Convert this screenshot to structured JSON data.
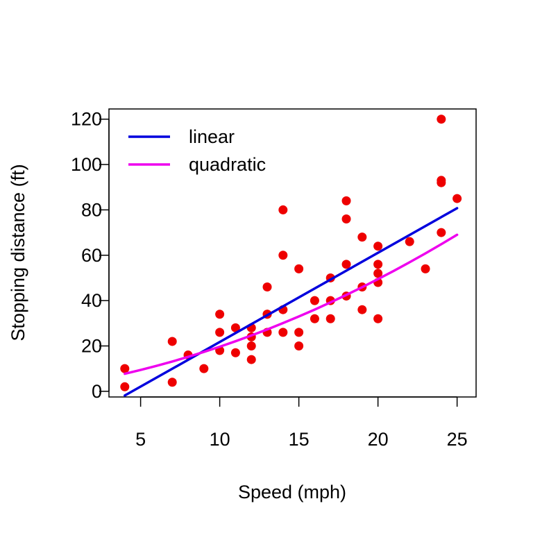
{
  "chart_data": {
    "type": "scatter",
    "title": "",
    "xlabel": "Speed (mph)",
    "ylabel": "Stopping distance (ft)",
    "xlim": [
      3,
      26.2
    ],
    "ylim": [
      -2.5,
      124.5
    ],
    "x_ticks": [
      5,
      10,
      15,
      20,
      25
    ],
    "y_ticks": [
      0,
      20,
      40,
      60,
      80,
      100,
      120
    ],
    "grid": false,
    "legend_position": "top-left",
    "point_color": "#ee0000",
    "points": [
      {
        "x": 4,
        "y": 2
      },
      {
        "x": 4,
        "y": 10
      },
      {
        "x": 7,
        "y": 4
      },
      {
        "x": 7,
        "y": 22
      },
      {
        "x": 8,
        "y": 16
      },
      {
        "x": 9,
        "y": 10
      },
      {
        "x": 10,
        "y": 18
      },
      {
        "x": 10,
        "y": 26
      },
      {
        "x": 10,
        "y": 34
      },
      {
        "x": 11,
        "y": 17
      },
      {
        "x": 11,
        "y": 28
      },
      {
        "x": 12,
        "y": 14
      },
      {
        "x": 12,
        "y": 20
      },
      {
        "x": 12,
        "y": 24
      },
      {
        "x": 12,
        "y": 28
      },
      {
        "x": 13,
        "y": 26
      },
      {
        "x": 13,
        "y": 34
      },
      {
        "x": 13,
        "y": 34
      },
      {
        "x": 13,
        "y": 46
      },
      {
        "x": 14,
        "y": 26
      },
      {
        "x": 14,
        "y": 36
      },
      {
        "x": 14,
        "y": 60
      },
      {
        "x": 14,
        "y": 80
      },
      {
        "x": 15,
        "y": 20
      },
      {
        "x": 15,
        "y": 26
      },
      {
        "x": 15,
        "y": 54
      },
      {
        "x": 16,
        "y": 32
      },
      {
        "x": 16,
        "y": 40
      },
      {
        "x": 17,
        "y": 32
      },
      {
        "x": 17,
        "y": 40
      },
      {
        "x": 17,
        "y": 50
      },
      {
        "x": 18,
        "y": 42
      },
      {
        "x": 18,
        "y": 56
      },
      {
        "x": 18,
        "y": 76
      },
      {
        "x": 18,
        "y": 84
      },
      {
        "x": 19,
        "y": 36
      },
      {
        "x": 19,
        "y": 46
      },
      {
        "x": 19,
        "y": 68
      },
      {
        "x": 20,
        "y": 32
      },
      {
        "x": 20,
        "y": 48
      },
      {
        "x": 20,
        "y": 52
      },
      {
        "x": 20,
        "y": 56
      },
      {
        "x": 20,
        "y": 64
      },
      {
        "x": 22,
        "y": 66
      },
      {
        "x": 23,
        "y": 54
      },
      {
        "x": 24,
        "y": 70
      },
      {
        "x": 24,
        "y": 92
      },
      {
        "x": 24,
        "y": 93
      },
      {
        "x": 24,
        "y": 120
      },
      {
        "x": 25,
        "y": 85
      }
    ],
    "series": [
      {
        "name": "linear",
        "color": "#0000dd",
        "x": [
          4,
          25
        ],
        "y": [
          -1.85,
          80.73
        ]
      },
      {
        "name": "quadratic",
        "color": "#ee00ee",
        "x": [
          4,
          5,
          6,
          7,
          8,
          9,
          10,
          11,
          12,
          13,
          14,
          15,
          16,
          17,
          18,
          19,
          20,
          21,
          22,
          23,
          24,
          25
        ],
        "y": [
          7.72,
          9.4,
          11.2,
          13.13,
          15.18,
          17.35,
          19.65,
          22.07,
          24.62,
          27.29,
          30.08,
          33.0,
          36.04,
          39.21,
          42.5,
          45.91,
          49.45,
          53.11,
          56.9,
          60.81,
          64.85,
          69.01
        ]
      }
    ]
  }
}
